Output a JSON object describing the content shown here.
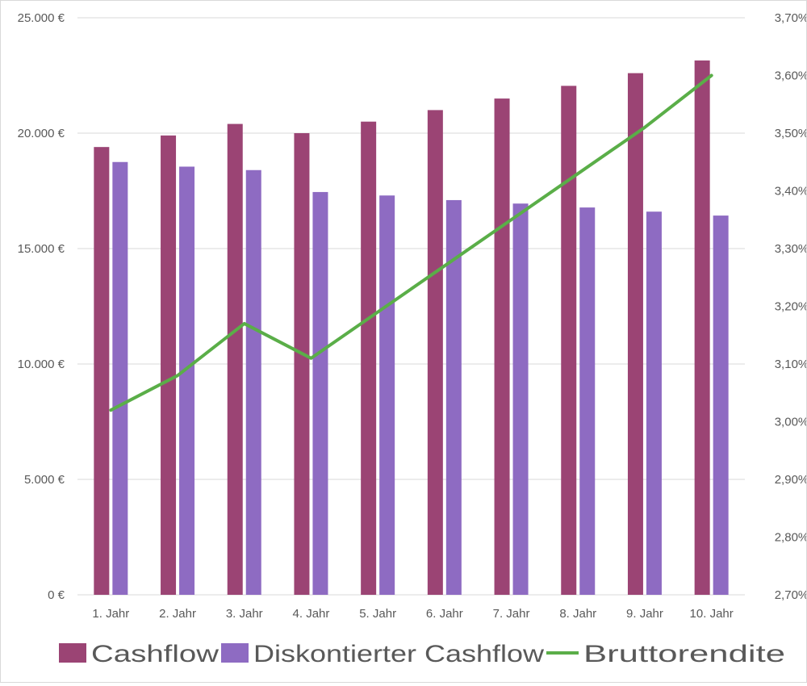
{
  "chart_data": {
    "type": "bar",
    "categories": [
      "1. Jahr",
      "2. Jahr",
      "3. Jahr",
      "4. Jahr",
      "5. Jahr",
      "6. Jahr",
      "7. Jahr",
      "8. Jahr",
      "9. Jahr",
      "10. Jahr"
    ],
    "series": [
      {
        "name": "Cashflow",
        "type": "bar",
        "axis": "left",
        "color": "#9B4474",
        "values": [
          19400,
          19900,
          20400,
          20000,
          20500,
          21000,
          21500,
          22050,
          22600,
          23150
        ]
      },
      {
        "name": "Diskontierter Cashflow",
        "type": "bar",
        "axis": "left",
        "color": "#8E6BC2",
        "values": [
          18750,
          18550,
          18400,
          17450,
          17300,
          17100,
          16950,
          16780,
          16600,
          16430
        ]
      },
      {
        "name": "Bruttorendite",
        "type": "line",
        "axis": "right",
        "color": "#5AAE48",
        "values": [
          3.02,
          3.08,
          3.17,
          3.11,
          3.19,
          3.27,
          3.35,
          3.43,
          3.51,
          3.6
        ]
      }
    ],
    "left_axis": {
      "min": 0,
      "max": 25000,
      "ticks": [
        0,
        5000,
        10000,
        15000,
        20000,
        25000
      ],
      "tick_labels": [
        "0 €",
        "5.000 €",
        "10.000 €",
        "15.000 €",
        "20.000 €",
        "25.000 €"
      ]
    },
    "right_axis": {
      "min": 2.7,
      "max": 3.7,
      "ticks": [
        2.7,
        2.8,
        2.9,
        3.0,
        3.1,
        3.2,
        3.3,
        3.4,
        3.5,
        3.6,
        3.7
      ],
      "tick_labels": [
        "2,70%",
        "2,80%",
        "2,90%",
        "3,00%",
        "3,10%",
        "3,20%",
        "3,30%",
        "3,40%",
        "3,50%",
        "3,60%",
        "3,70%"
      ]
    },
    "grid": true,
    "gridline_color": "#d9d9d9",
    "legend_position": "bottom"
  }
}
